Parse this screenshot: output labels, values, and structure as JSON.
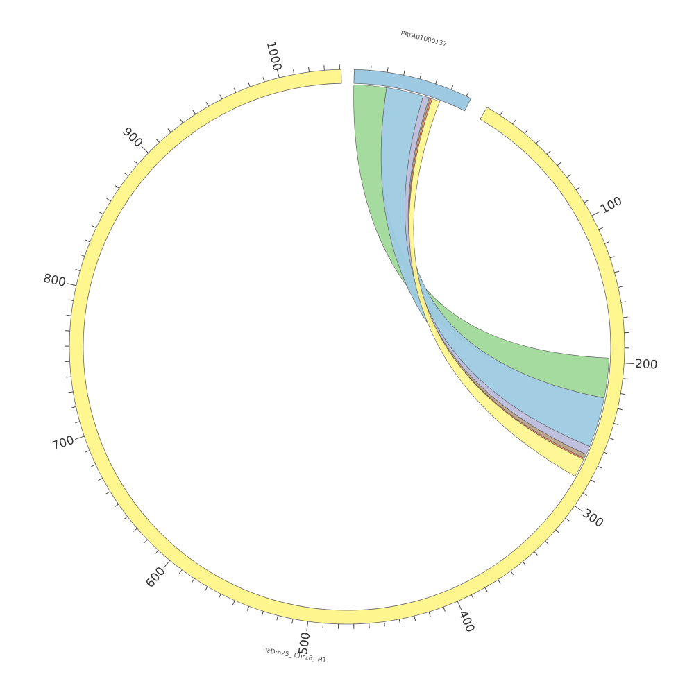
{
  "diagram": {
    "type": "circos",
    "segments": [
      {
        "name": "PRFA01000137",
        "length": 73,
        "color": "#9ec9e2"
      },
      {
        "name": "TcDm25_ Chr18_ H1",
        "length": 1041,
        "color": "#fff68f"
      }
    ],
    "tick_labels": [
      "1000",
      "100",
      "200",
      "300",
      "400",
      "500",
      "600",
      "700",
      "800",
      "900"
    ],
    "ribbons": [
      {
        "source": [
          0,
          21
        ],
        "target": [
          1,
          197,
          225
        ],
        "color": "#a1d99b"
      },
      {
        "source": [
          21,
          45
        ],
        "target": [
          1,
          225,
          260
        ],
        "color": "#9ecae1"
      },
      {
        "source": [
          45,
          49
        ],
        "target": [
          1,
          260,
          266
        ],
        "color": "#bcbddc"
      },
      {
        "source": [
          49,
          50
        ],
        "target": [
          1,
          266,
          269
        ],
        "color": "#b8a186"
      },
      {
        "source": [
          50,
          51
        ],
        "target": [
          1,
          269,
          270
        ],
        "color": "#fc8d62"
      },
      {
        "source": [
          51,
          56
        ],
        "target": [
          1,
          270,
          283
        ],
        "color": "#fff68f"
      }
    ]
  }
}
